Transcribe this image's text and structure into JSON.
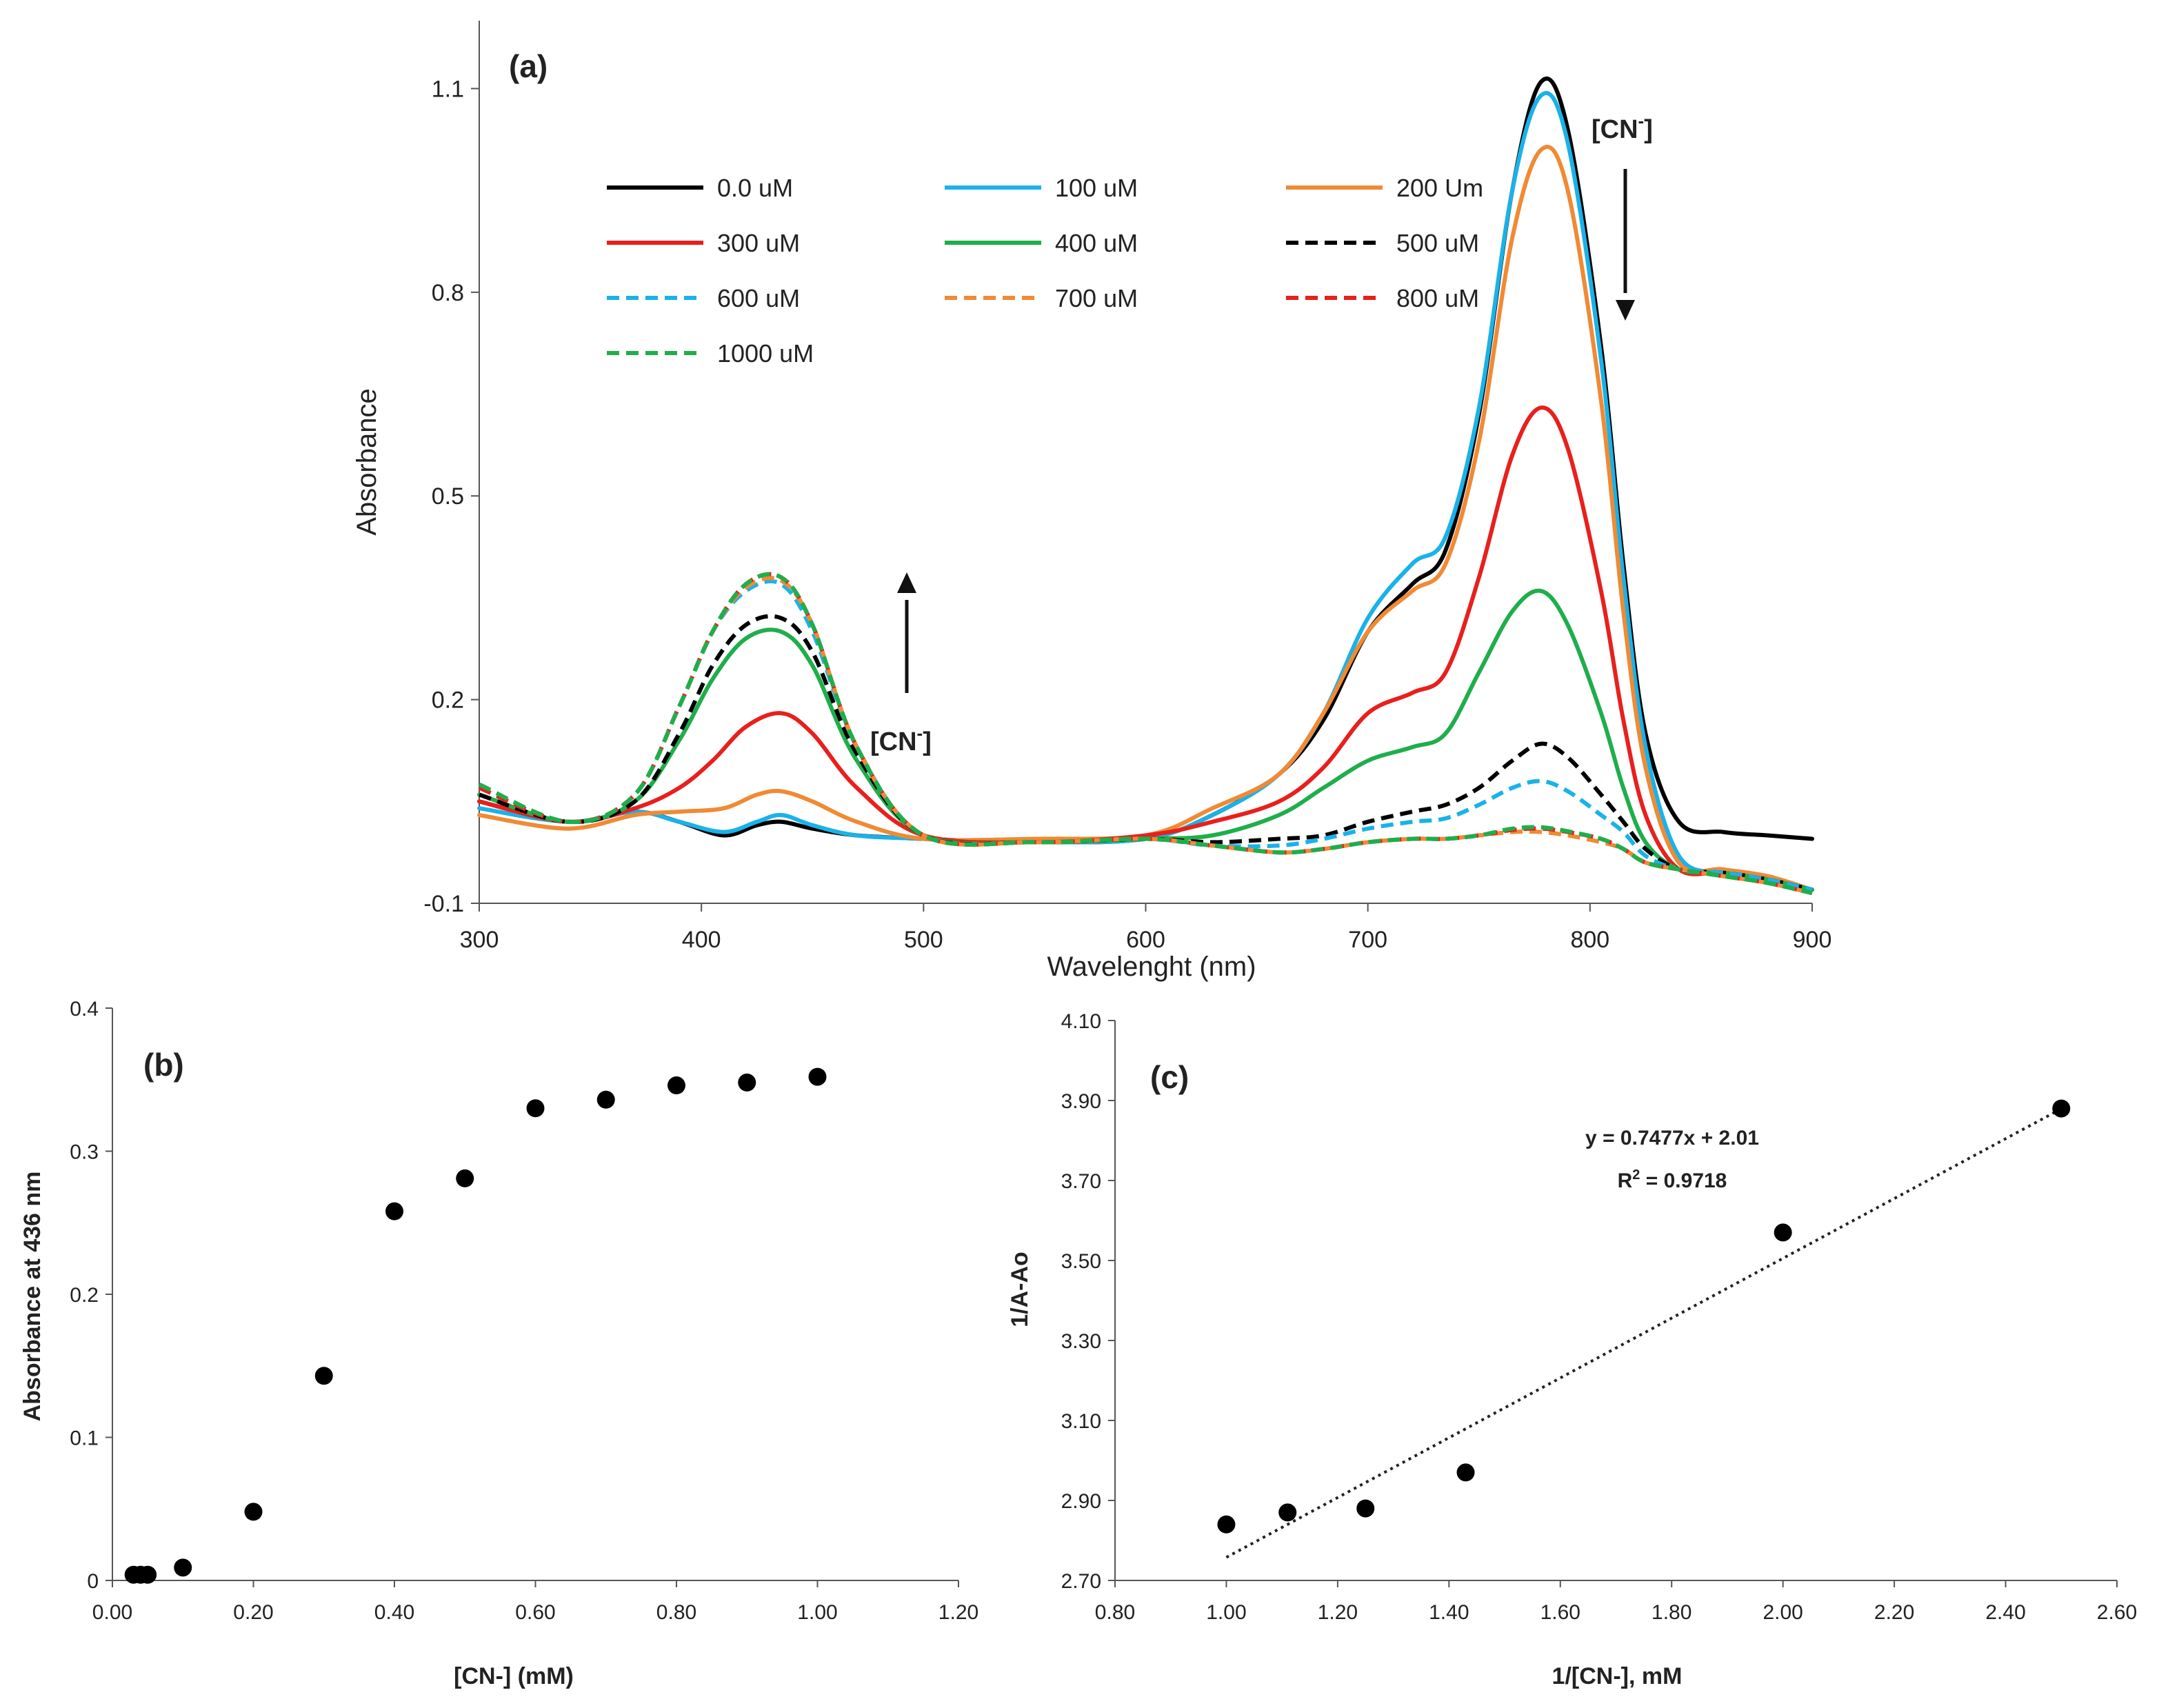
{
  "chart_data": [
    {
      "panel": "(a)",
      "type": "line",
      "title": "",
      "xlabel": "Wavelenght (nm)",
      "ylabel": "Absorbance",
      "xlim": [
        300,
        900
      ],
      "ylim": [
        -0.1,
        1.2
      ],
      "xticks": [
        300,
        400,
        500,
        600,
        700,
        800,
        900
      ],
      "yticks": [
        -0.1,
        0.2,
        0.5,
        0.8,
        1.1
      ],
      "xtick_labels": [
        "300",
        "400",
        "500",
        "600",
        "700",
        "800",
        "900"
      ],
      "ytick_labels": [
        "-0.1",
        "0.2",
        "0.5",
        "0.8",
        "1.1"
      ],
      "legend_position": "top-center",
      "annotations": [
        {
          "text": "[CN",
          "sup": "-",
          "close": "]",
          "where": "near 436 nm peak",
          "arrow": "up"
        },
        {
          "text": "[CN",
          "sup": "-",
          "close": "]",
          "where": "near 780 nm peak",
          "arrow": "down"
        }
      ],
      "series": [
        {
          "name": "0.0 uM",
          "color": "#000000",
          "dashed": false,
          "x": [
            300,
            340,
            370,
            390,
            410,
            425,
            436,
            450,
            470,
            500,
            550,
            600,
            630,
            660,
            680,
            700,
            720,
            735,
            750,
            765,
            778,
            790,
            805,
            815,
            825,
            840,
            860,
            880,
            900
          ],
          "y": [
            0.05,
            0.02,
            0.035,
            0.02,
            0.0,
            0.015,
            0.02,
            0.01,
            0.0,
            -0.005,
            -0.01,
            -0.005,
            0.03,
            0.09,
            0.17,
            0.3,
            0.37,
            0.42,
            0.62,
            0.95,
            1.11,
            1.04,
            0.72,
            0.4,
            0.15,
            0.02,
            0.005,
            0.0,
            -0.005
          ]
        },
        {
          "name": "100 uM",
          "color": "#1ab2e8",
          "dashed": false,
          "x": [
            300,
            340,
            370,
            390,
            410,
            425,
            436,
            450,
            470,
            500,
            550,
            600,
            630,
            660,
            680,
            700,
            720,
            735,
            750,
            765,
            778,
            790,
            805,
            815,
            825,
            840,
            860,
            880,
            900
          ],
          "y": [
            0.04,
            0.02,
            0.035,
            0.02,
            0.005,
            0.02,
            0.03,
            0.015,
            0.0,
            -0.005,
            -0.01,
            -0.005,
            0.03,
            0.09,
            0.18,
            0.32,
            0.4,
            0.44,
            0.63,
            0.95,
            1.09,
            1.02,
            0.7,
            0.38,
            0.13,
            -0.03,
            -0.055,
            -0.065,
            -0.08
          ]
        },
        {
          "name": "200 Um",
          "color": "#f08a35",
          "dashed": false,
          "x": [
            300,
            340,
            370,
            390,
            410,
            425,
            436,
            450,
            470,
            500,
            550,
            600,
            630,
            660,
            680,
            700,
            720,
            735,
            750,
            765,
            778,
            790,
            805,
            815,
            825,
            840,
            860,
            880,
            900
          ],
          "y": [
            0.03,
            0.01,
            0.03,
            0.035,
            0.04,
            0.06,
            0.065,
            0.05,
            0.02,
            -0.005,
            -0.005,
            0.0,
            0.04,
            0.09,
            0.18,
            0.3,
            0.36,
            0.4,
            0.58,
            0.88,
            1.01,
            0.95,
            0.64,
            0.33,
            0.1,
            -0.04,
            -0.05,
            -0.06,
            -0.08
          ]
        },
        {
          "name": "300 uM",
          "color": "#e8201c",
          "dashed": false,
          "x": [
            300,
            340,
            370,
            390,
            405,
            420,
            436,
            450,
            470,
            500,
            550,
            600,
            630,
            660,
            680,
            700,
            720,
            735,
            750,
            765,
            778,
            790,
            805,
            815,
            825,
            840,
            860,
            880,
            900
          ],
          "y": [
            0.05,
            0.02,
            0.04,
            0.07,
            0.11,
            0.16,
            0.18,
            0.15,
            0.07,
            0.0,
            -0.01,
            0.0,
            0.02,
            0.05,
            0.1,
            0.18,
            0.21,
            0.24,
            0.38,
            0.56,
            0.63,
            0.57,
            0.36,
            0.17,
            0.03,
            -0.05,
            -0.055,
            -0.065,
            -0.08
          ]
        },
        {
          "name": "400 uM",
          "color": "#1fae4b",
          "dashed": false,
          "x": [
            300,
            340,
            370,
            390,
            405,
            420,
            436,
            450,
            470,
            500,
            550,
            600,
            630,
            660,
            680,
            700,
            720,
            735,
            750,
            765,
            778,
            790,
            805,
            815,
            825,
            840,
            860,
            880,
            900
          ],
          "y": [
            0.06,
            0.02,
            0.05,
            0.14,
            0.23,
            0.29,
            0.3,
            0.25,
            0.11,
            0.0,
            -0.01,
            -0.005,
            0.0,
            0.03,
            0.07,
            0.11,
            0.13,
            0.15,
            0.24,
            0.33,
            0.36,
            0.31,
            0.18,
            0.07,
            -0.01,
            -0.05,
            -0.055,
            -0.065,
            -0.08
          ]
        },
        {
          "name": "500 uM",
          "color": "#000000",
          "dashed": true,
          "x": [
            300,
            340,
            370,
            390,
            405,
            420,
            436,
            450,
            470,
            500,
            550,
            600,
            630,
            660,
            680,
            700,
            720,
            735,
            750,
            765,
            778,
            790,
            805,
            815,
            825,
            840,
            860,
            880,
            900
          ],
          "y": [
            0.06,
            0.02,
            0.05,
            0.15,
            0.25,
            0.31,
            0.32,
            0.27,
            0.12,
            0.0,
            -0.01,
            -0.005,
            -0.01,
            -0.005,
            0.0,
            0.02,
            0.035,
            0.045,
            0.07,
            0.11,
            0.135,
            0.115,
            0.06,
            0.02,
            -0.02,
            -0.05,
            -0.055,
            -0.065,
            -0.08
          ]
        },
        {
          "name": "600 uM",
          "color": "#1ab2e8",
          "dashed": true,
          "x": [
            300,
            340,
            370,
            390,
            405,
            420,
            436,
            450,
            470,
            500,
            550,
            600,
            630,
            660,
            680,
            700,
            720,
            735,
            750,
            765,
            778,
            790,
            805,
            815,
            825,
            840,
            860,
            880,
            900
          ],
          "y": [
            0.07,
            0.02,
            0.06,
            0.19,
            0.3,
            0.36,
            0.37,
            0.3,
            0.13,
            0.0,
            -0.01,
            -0.005,
            -0.015,
            -0.015,
            -0.005,
            0.01,
            0.02,
            0.025,
            0.045,
            0.07,
            0.08,
            0.065,
            0.03,
            0.005,
            -0.03,
            -0.05,
            -0.055,
            -0.065,
            -0.08
          ]
        },
        {
          "name": "700 uM",
          "color": "#f08a35",
          "dashed": true,
          "x": [
            300,
            340,
            370,
            390,
            405,
            420,
            436,
            450,
            470,
            500,
            550,
            600,
            630,
            660,
            680,
            700,
            720,
            735,
            750,
            765,
            778,
            790,
            805,
            815,
            825,
            840,
            860,
            880,
            900
          ],
          "y": [
            0.07,
            0.02,
            0.06,
            0.19,
            0.3,
            0.365,
            0.375,
            0.31,
            0.13,
            0.0,
            -0.01,
            -0.005,
            -0.015,
            -0.025,
            -0.02,
            -0.01,
            -0.005,
            -0.005,
            0.0,
            0.005,
            0.005,
            0.0,
            -0.01,
            -0.02,
            -0.04,
            -0.05,
            -0.06,
            -0.07,
            -0.085
          ]
        },
        {
          "name": "800 uM",
          "color": "#e8201c",
          "dashed": true,
          "x": [
            300,
            340,
            370,
            390,
            405,
            420,
            436,
            450,
            470,
            500,
            550,
            600,
            630,
            660,
            680,
            700,
            720,
            735,
            750,
            765,
            778,
            790,
            805,
            815,
            825,
            840,
            860,
            880,
            900
          ],
          "y": [
            0.07,
            0.02,
            0.06,
            0.19,
            0.3,
            0.37,
            0.38,
            0.31,
            0.13,
            0.0,
            -0.01,
            -0.005,
            -0.015,
            -0.025,
            -0.02,
            -0.01,
            -0.005,
            -0.005,
            0.0,
            0.008,
            0.01,
            0.005,
            -0.005,
            -0.02,
            -0.04,
            -0.05,
            -0.06,
            -0.07,
            -0.085
          ]
        },
        {
          "name": "1000 uM",
          "color": "#1fae4b",
          "dashed": true,
          "x": [
            300,
            340,
            370,
            390,
            405,
            420,
            436,
            450,
            470,
            500,
            550,
            600,
            630,
            660,
            680,
            700,
            720,
            735,
            750,
            765,
            778,
            790,
            805,
            815,
            825,
            840,
            860,
            880,
            900
          ],
          "y": [
            0.075,
            0.02,
            0.06,
            0.19,
            0.3,
            0.37,
            0.38,
            0.31,
            0.13,
            0.0,
            -0.01,
            -0.005,
            -0.015,
            -0.025,
            -0.02,
            -0.01,
            -0.005,
            -0.005,
            0.0,
            0.01,
            0.012,
            0.006,
            -0.005,
            -0.02,
            -0.04,
            -0.05,
            -0.06,
            -0.07,
            -0.085
          ]
        }
      ]
    },
    {
      "panel": "(b)",
      "type": "scatter",
      "title": "",
      "xlabel": "[CN-] (mM)",
      "ylabel": "Absorbance at 436 nm",
      "xlim": [
        0,
        1.2
      ],
      "ylim": [
        0,
        0.4
      ],
      "xticks": [
        0,
        0.2,
        0.4,
        0.6,
        0.8,
        1.0,
        1.2
      ],
      "yticks": [
        0,
        0.1,
        0.2,
        0.3,
        0.4
      ],
      "xtick_labels": [
        "0.00",
        "0.20",
        "0.40",
        "0.60",
        "0.80",
        "1.00",
        "1.20"
      ],
      "ytick_labels": [
        "0",
        "0.1",
        "0.2",
        "0.3",
        "0.4"
      ],
      "x": [
        0.03,
        0.04,
        0.05,
        0.1,
        0.2,
        0.3,
        0.4,
        0.5,
        0.6,
        0.7,
        0.8,
        0.9,
        1.0
      ],
      "y": [
        0.004,
        0.004,
        0.004,
        0.009,
        0.048,
        0.143,
        0.258,
        0.281,
        0.33,
        0.336,
        0.346,
        0.348,
        0.352
      ]
    },
    {
      "panel": "(c)",
      "type": "scatter",
      "title": "",
      "xlabel": "1/[CN-], mM",
      "ylabel": "1/A-Ao",
      "xlim": [
        0.8,
        2.6
      ],
      "ylim": [
        2.7,
        4.1
      ],
      "xticks": [
        0.8,
        1.0,
        1.2,
        1.4,
        1.6,
        1.8,
        2.0,
        2.2,
        2.4,
        2.6
      ],
      "yticks": [
        2.7,
        2.9,
        3.1,
        3.3,
        3.5,
        3.7,
        3.9,
        4.1
      ],
      "xtick_labels": [
        "0.80",
        "1.00",
        "1.20",
        "1.40",
        "1.60",
        "1.80",
        "2.00",
        "2.20",
        "2.40",
        "2.60"
      ],
      "ytick_labels": [
        "2.70",
        "2.90",
        "3.10",
        "3.30",
        "3.50",
        "3.70",
        "3.90",
        "4.10"
      ],
      "x": [
        1.0,
        1.11,
        1.25,
        1.43,
        2.0,
        2.5
      ],
      "y": [
        2.84,
        2.87,
        2.88,
        2.97,
        3.57,
        3.88
      ],
      "trendline": {
        "slope": 0.7477,
        "intercept": 2.01,
        "x_range": [
          1.0,
          2.5
        ],
        "style": "dotted"
      },
      "equation": "y = 0.7477x + 2.01",
      "r2_label": "R",
      "r2_value": " = 0.9718"
    }
  ]
}
